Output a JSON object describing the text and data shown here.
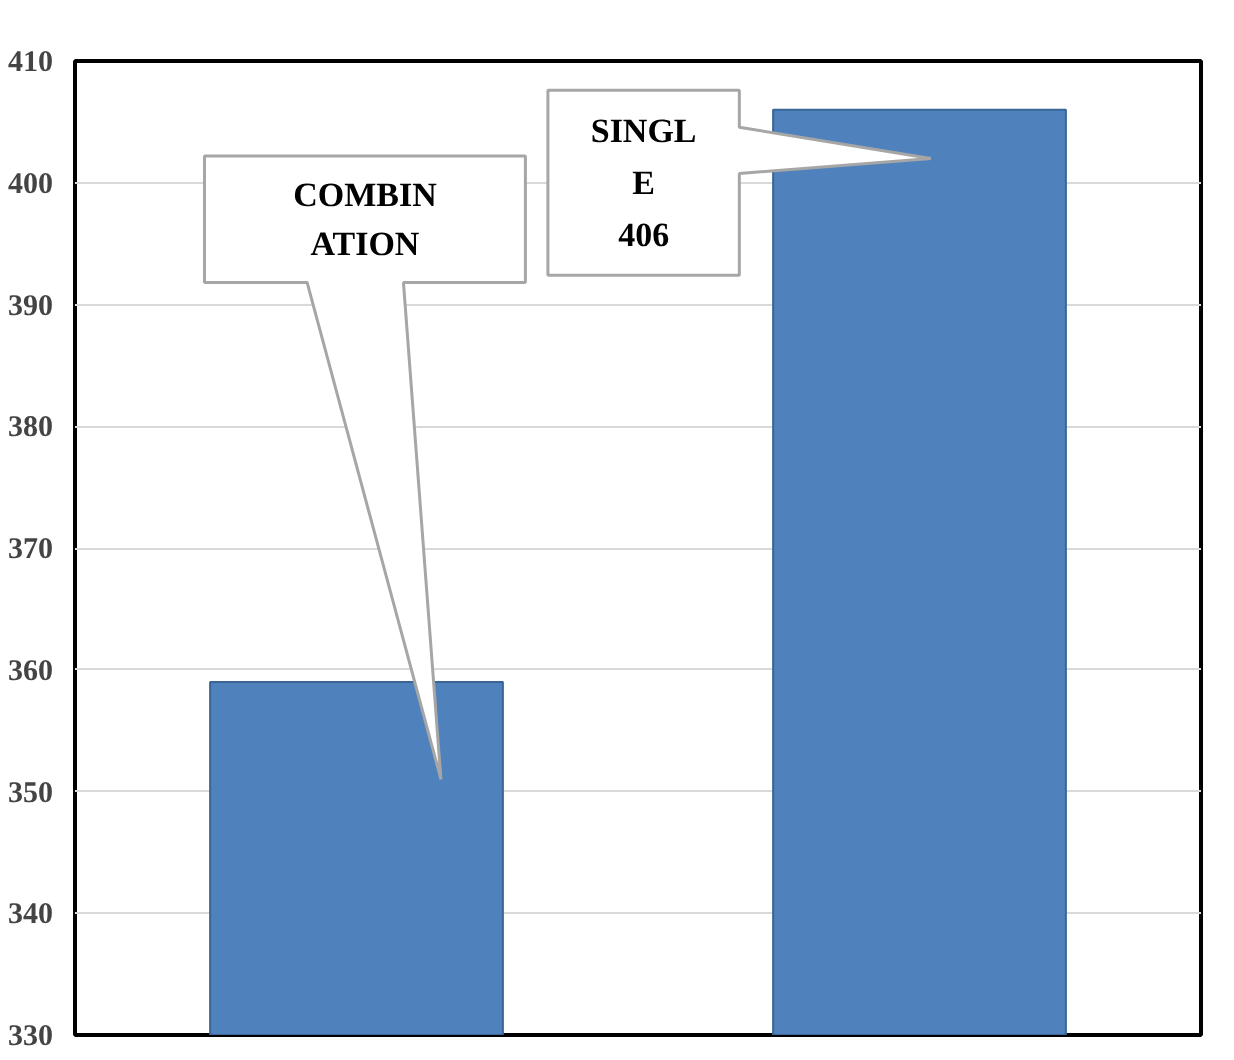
{
  "chart_data": {
    "type": "bar",
    "categories": [
      null,
      null
    ],
    "values": [
      359,
      406
    ],
    "color": "#4f81bd",
    "ylim": [
      330,
      410
    ],
    "yticks": [
      330,
      340,
      350,
      360,
      370,
      380,
      390,
      400,
      410
    ],
    "grid": "y",
    "annotations": [
      "COMBINATION",
      "SINGLE 406"
    ]
  }
}
